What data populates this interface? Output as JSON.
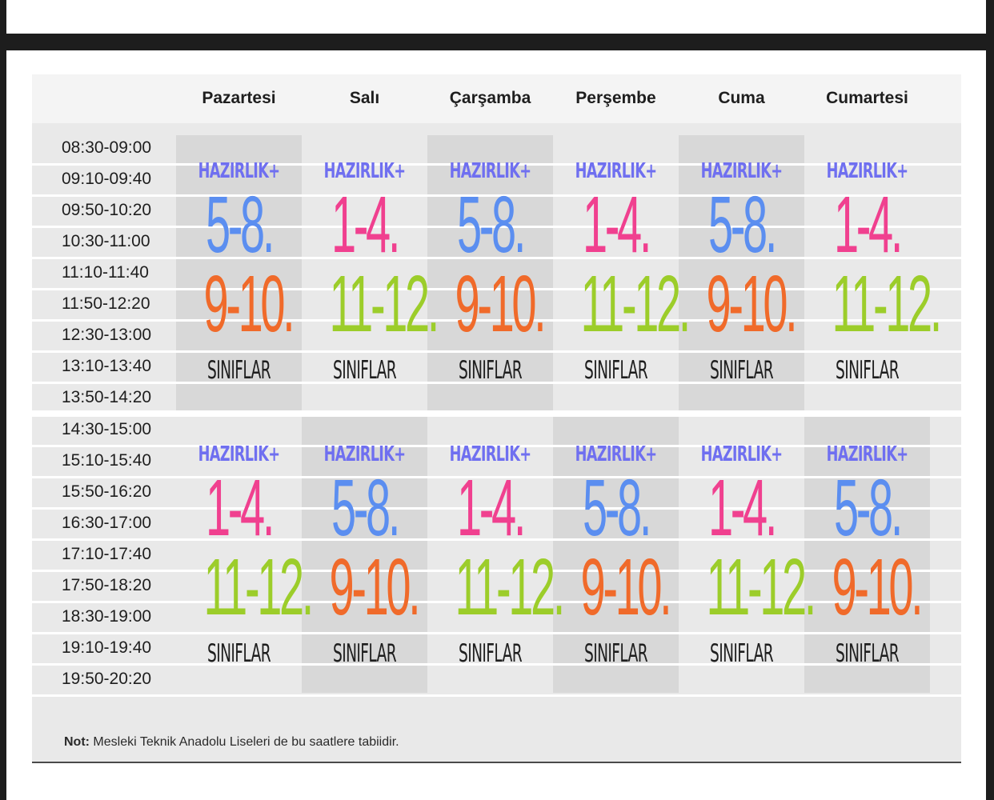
{
  "days": [
    "Pazartesi",
    "Salı",
    "Çarşamba",
    "Perşembe",
    "Cuma",
    "Cumartesi"
  ],
  "morning_times": [
    "08:30-09:00",
    "09:10-09:40",
    "09:50-10:20",
    "10:30-11:00",
    "11:10-11:40",
    "11:50-12:20",
    "12:30-13:00",
    "13:10-13:40",
    "13:50-14:20"
  ],
  "afternoon_times": [
    "14:30-15:00",
    "15:10-15:40",
    "15:50-16:20",
    "16:30-17:00",
    "17:10-17:40",
    "17:50-18:20",
    "18:30-19:00",
    "19:10-19:40",
    "19:50-20:20"
  ],
  "labels": {
    "prefix": "HAZIRLIK+",
    "suffix": "SINIFLAR"
  },
  "colors": {
    "purple": "#6f6ff0",
    "blue": "#5b8ef0",
    "pink": "#f0408f",
    "orange": "#f06a2a",
    "green": "#9ccd2a"
  },
  "morning_blocks": [
    {
      "g1": "5-8.",
      "c1": "blue",
      "g2": "9-10.",
      "c2": "orange"
    },
    {
      "g1": "1-4.",
      "c1": "pink",
      "g2": "11-12.",
      "c2": "green"
    },
    {
      "g1": "5-8.",
      "c1": "blue",
      "g2": "9-10.",
      "c2": "orange"
    },
    {
      "g1": "1-4.",
      "c1": "pink",
      "g2": "11-12.",
      "c2": "green"
    },
    {
      "g1": "5-8.",
      "c1": "blue",
      "g2": "9-10.",
      "c2": "orange"
    },
    {
      "g1": "1-4.",
      "c1": "pink",
      "g2": "11-12.",
      "c2": "green"
    }
  ],
  "afternoon_blocks": [
    {
      "g1": "1-4.",
      "c1": "pink",
      "g2": "11-12.",
      "c2": "green"
    },
    {
      "g1": "5-8.",
      "c1": "blue",
      "g2": "9-10.",
      "c2": "orange"
    },
    {
      "g1": "1-4.",
      "c1": "pink",
      "g2": "11-12.",
      "c2": "green"
    },
    {
      "g1": "5-8.",
      "c1": "blue",
      "g2": "9-10.",
      "c2": "orange"
    },
    {
      "g1": "1-4.",
      "c1": "pink",
      "g2": "11-12.",
      "c2": "green"
    },
    {
      "g1": "5-8.",
      "c1": "blue",
      "g2": "9-10.",
      "c2": "orange"
    }
  ],
  "note": {
    "label": "Not:",
    "text": " Mesleki Teknik Anadolu Liseleri de bu saatlere tabiidir."
  }
}
